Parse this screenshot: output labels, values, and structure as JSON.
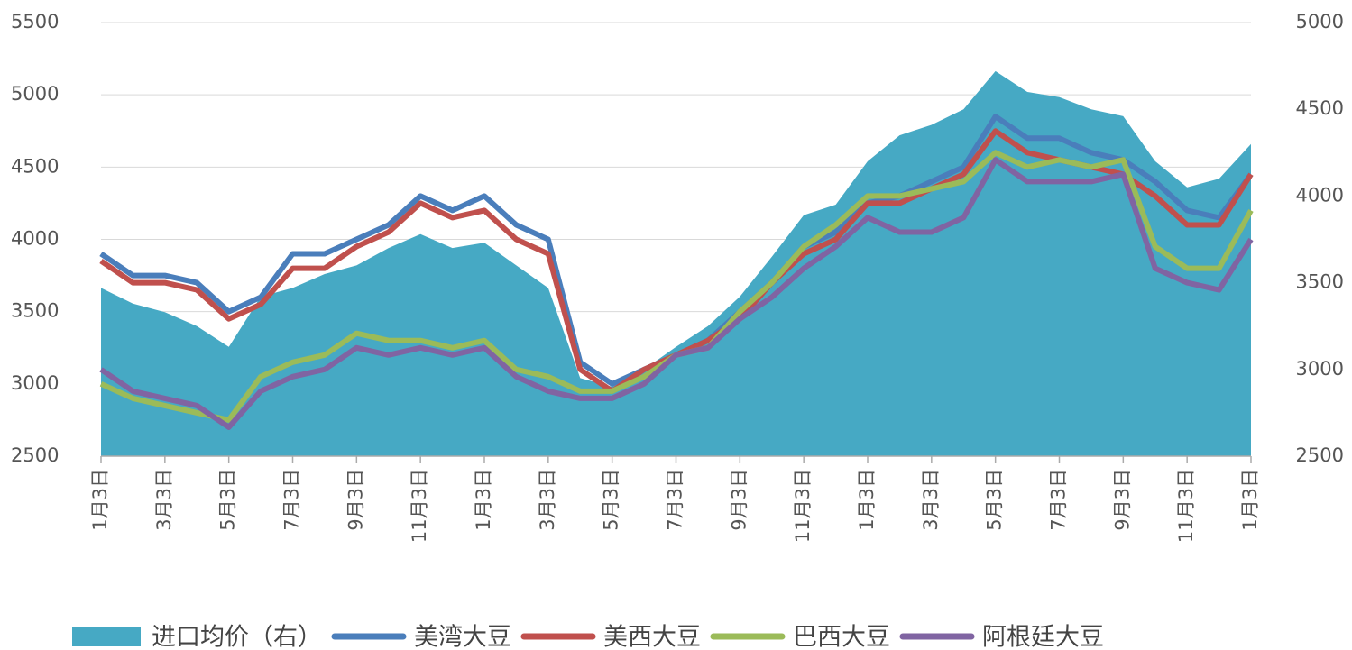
{
  "chart_data": {
    "type": "line",
    "categories": [
      "1月3日",
      null,
      "3月3日",
      null,
      "5月3日",
      null,
      "7月3日",
      null,
      "9月3日",
      null,
      "11月3日",
      null,
      "1月3日",
      null,
      "3月3日",
      null,
      "5月3日",
      null,
      "7月3日",
      null,
      "9月3日",
      null,
      "11月3日",
      null,
      "1月3日",
      null,
      "3月3日",
      null,
      "5月3日",
      null,
      "7月3日",
      null,
      "9月3日",
      null,
      "11月3日",
      null,
      "1月3日"
    ],
    "ylim": [
      2500,
      5500
    ],
    "yticks": [
      2500,
      3000,
      3500,
      4000,
      4500,
      5000,
      5500
    ],
    "y2lim": [
      2500,
      5000
    ],
    "y2ticks": [
      2500,
      3000,
      3500,
      4000,
      4500,
      5000
    ],
    "grid": true,
    "legend": "bottom",
    "series": [
      {
        "name": "进口均价（右）",
        "type": "area",
        "axis": "y2",
        "color": "#46a9c4",
        "values": [
          3470,
          3380,
          3330,
          3250,
          3130,
          3420,
          3470,
          3550,
          3600,
          3700,
          3780,
          3700,
          3730,
          3600,
          3470,
          2950,
          2900,
          3000,
          3130,
          3250,
          3420,
          3650,
          3890,
          3950,
          4200,
          4350,
          4410,
          4500,
          4720,
          4600,
          4570,
          4500,
          4460,
          4200,
          4050,
          4100,
          4300
        ]
      },
      {
        "name": "美湾大豆",
        "color": "#4a7ebb",
        "values": [
          3900,
          3750,
          3750,
          3700,
          3500,
          3600,
          3900,
          3900,
          4000,
          4100,
          4300,
          4200,
          4300,
          4100,
          4000,
          3150,
          3000,
          3100,
          3200,
          3300,
          3500,
          3700,
          3950,
          4050,
          4250,
          4300,
          4400,
          4500,
          4850,
          4700,
          4700,
          4600,
          4550,
          4400,
          4200,
          4150,
          4450
        ]
      },
      {
        "name": "美西大豆",
        "color": "#c0504d",
        "values": [
          3850,
          3700,
          3700,
          3650,
          3450,
          3550,
          3800,
          3800,
          3950,
          4050,
          4250,
          4150,
          4200,
          4000,
          3900,
          3100,
          2950,
          3100,
          3200,
          3300,
          3450,
          3700,
          3900,
          4000,
          4250,
          4250,
          4350,
          4450,
          4750,
          4600,
          4550,
          4500,
          4450,
          4300,
          4100,
          4100,
          4450
        ]
      },
      {
        "name": "巴西大豆",
        "color": "#9bbb59",
        "values": [
          3000,
          2900,
          2850,
          2800,
          2750,
          3050,
          3150,
          3200,
          3350,
          3300,
          3300,
          3250,
          3300,
          3100,
          3050,
          2950,
          2950,
          3050,
          3200,
          3250,
          3500,
          3700,
          3950,
          4100,
          4300,
          4300,
          4350,
          4400,
          4600,
          4500,
          4550,
          4500,
          4550,
          3950,
          3800,
          3800,
          4200
        ]
      },
      {
        "name": "阿根廷大豆",
        "color": "#8064a2",
        "values": [
          3100,
          2950,
          2900,
          2850,
          2700,
          2950,
          3050,
          3100,
          3250,
          3200,
          3250,
          3200,
          3250,
          3050,
          2950,
          2900,
          2900,
          3000,
          3200,
          3250,
          3450,
          3600,
          3800,
          3950,
          4150,
          4050,
          4050,
          4150,
          4550,
          4400,
          4400,
          4400,
          4450,
          3800,
          3700,
          3650,
          4000
        ]
      }
    ]
  }
}
